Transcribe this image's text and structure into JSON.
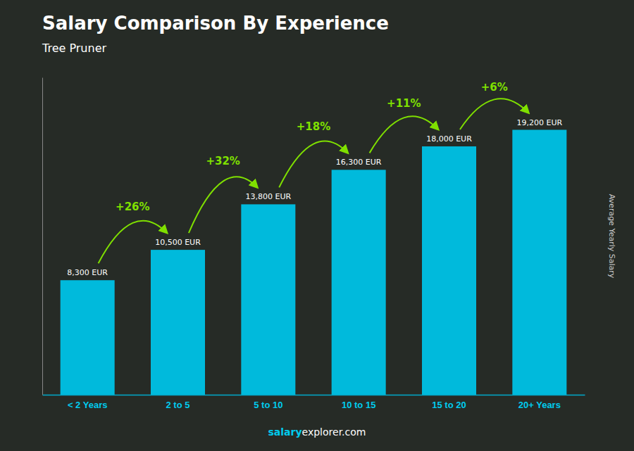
{
  "chart_data": {
    "type": "bar",
    "title": "Salary Comparison By Experience",
    "subtitle": "Tree Pruner",
    "categories": [
      "< 2 Years",
      "2 to 5",
      "5 to 10",
      "10 to 15",
      "15 to 20",
      "20+ Years"
    ],
    "values": [
      8300,
      10500,
      13800,
      16300,
      18000,
      19200
    ],
    "value_labels": [
      "8,300 EUR",
      "10,500 EUR",
      "13,800 EUR",
      "16,300 EUR",
      "18,000 EUR",
      "19,200 EUR"
    ],
    "data_labels": true,
    "annotations": [
      "+26%",
      "+32%",
      "+18%",
      "+11%",
      "+6%"
    ],
    "ylabel": "Average Yearly Salary",
    "footer": [
      "salary",
      "explorer.com"
    ],
    "color": "#00BADC",
    "ylim": [
      0,
      23000
    ],
    "grid": false,
    "tick_labels": "x"
  }
}
